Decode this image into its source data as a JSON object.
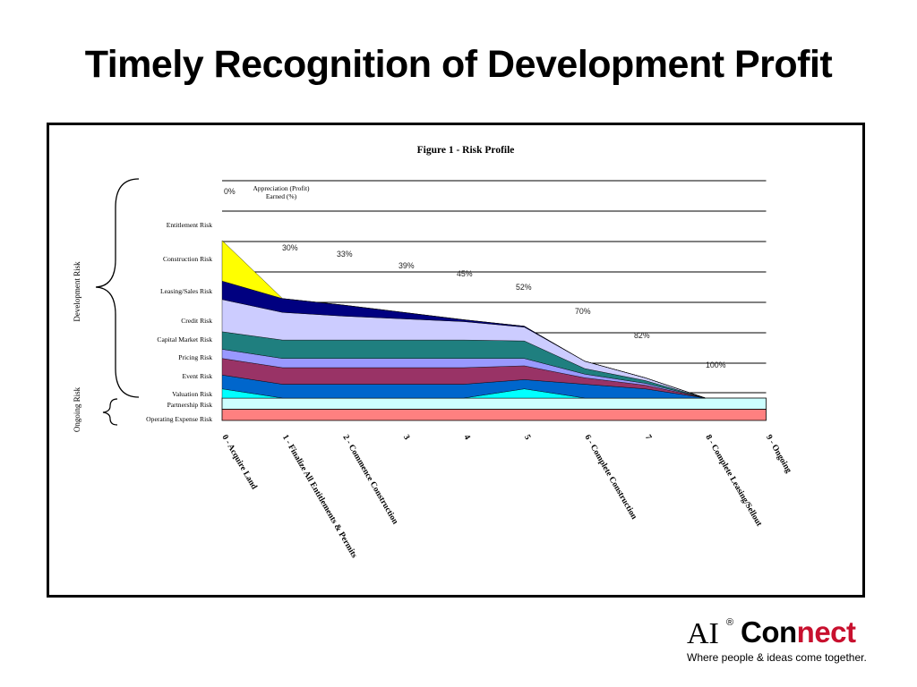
{
  "slide": {
    "title": "Timely Recognition of Development Profit"
  },
  "logo": {
    "ai": "AI",
    "registered": "®",
    "con": "Con",
    "nect": "nect",
    "tagline": "Where people & ideas come together."
  },
  "chart_data": {
    "type": "area",
    "title": "Figure 1 - Risk Profile",
    "annotation": "Appreciation (Profit) Earned (%)",
    "brace_labels": [
      "Development Risk",
      "Ongoing Risk"
    ],
    "x_categories": [
      "0 - Acquire Land",
      "1 - Finalize All Entitlements & Permits",
      "2 - Commence Construction",
      "3",
      "4",
      "5",
      "6 - Complete Construction",
      "7",
      "8 - Complete Leasing/Sellout",
      "9 - Ongoing"
    ],
    "profit_labels": [
      {
        "stage": 0,
        "label": "0%"
      },
      {
        "stage": 1,
        "label": "30%"
      },
      {
        "stage": 2,
        "label": "33%"
      },
      {
        "stage": 3,
        "label": "39%"
      },
      {
        "stage": 4,
        "label": "45%"
      },
      {
        "stage": 5,
        "label": "52%"
      },
      {
        "stage": 6,
        "label": "70%"
      },
      {
        "stage": 7,
        "label": "82%"
      },
      {
        "stage": 8,
        "label": "100%"
      }
    ],
    "colors": {
      "Entitlement Risk": "#ffff00",
      "Construction Risk": "#000080",
      "Leasing/Sales Risk": "#ccccff",
      "Credit Risk": "#1f7f7f",
      "Capital Market Risk": "#9999ff",
      "Pricing Risk": "#993366",
      "Event Risk": "#0066cc",
      "Valuation Risk": "#00ffff",
      "Partnership Risk": "#ccffff",
      "Operating Expense Risk": "#ff8080"
    },
    "development_series": [
      {
        "name": "Valuation Risk",
        "values": [
          1.0,
          0.0,
          0.0,
          0.0,
          0.0,
          1.0,
          0.0,
          0.0,
          0.0
        ]
      },
      {
        "name": "Event Risk",
        "values": [
          1.5,
          1.5,
          1.5,
          1.5,
          1.5,
          1.0,
          1.5,
          1.0,
          0.0
        ]
      },
      {
        "name": "Pricing Risk",
        "values": [
          1.8,
          1.8,
          1.8,
          1.8,
          1.8,
          1.5,
          0.7,
          0.4,
          0.0
        ]
      },
      {
        "name": "Capital Market Risk",
        "values": [
          1.0,
          1.0,
          1.0,
          1.0,
          1.0,
          0.8,
          0.4,
          0.2,
          0.0
        ]
      },
      {
        "name": "Credit Risk",
        "values": [
          1.9,
          2.0,
          2.0,
          2.0,
          2.0,
          1.9,
          0.6,
          0.3,
          0.0
        ]
      },
      {
        "name": "Leasing/Sales Risk",
        "values": [
          3.5,
          3.0,
          2.6,
          2.3,
          2.0,
          1.5,
          0.8,
          0.3,
          0.0
        ]
      },
      {
        "name": "Construction Risk",
        "values": [
          2.0,
          1.5,
          1.2,
          0.7,
          0.2,
          0.1,
          0.0,
          0.0,
          0.0
        ]
      },
      {
        "name": "Entitlement Risk",
        "values": [
          4.4,
          0.0,
          0.0,
          0.0,
          0.0,
          0.0,
          0.0,
          0.0,
          0.0
        ]
      }
    ],
    "ongoing_series": [
      {
        "name": "Partnership Risk",
        "values": [
          1,
          1,
          1,
          1,
          1,
          1,
          1,
          1,
          1,
          1
        ]
      },
      {
        "name": "Operating Expense Risk",
        "values": [
          1,
          1,
          1,
          1,
          1,
          1,
          1,
          1,
          1,
          1
        ]
      }
    ],
    "grid": true,
    "legend": "left"
  }
}
